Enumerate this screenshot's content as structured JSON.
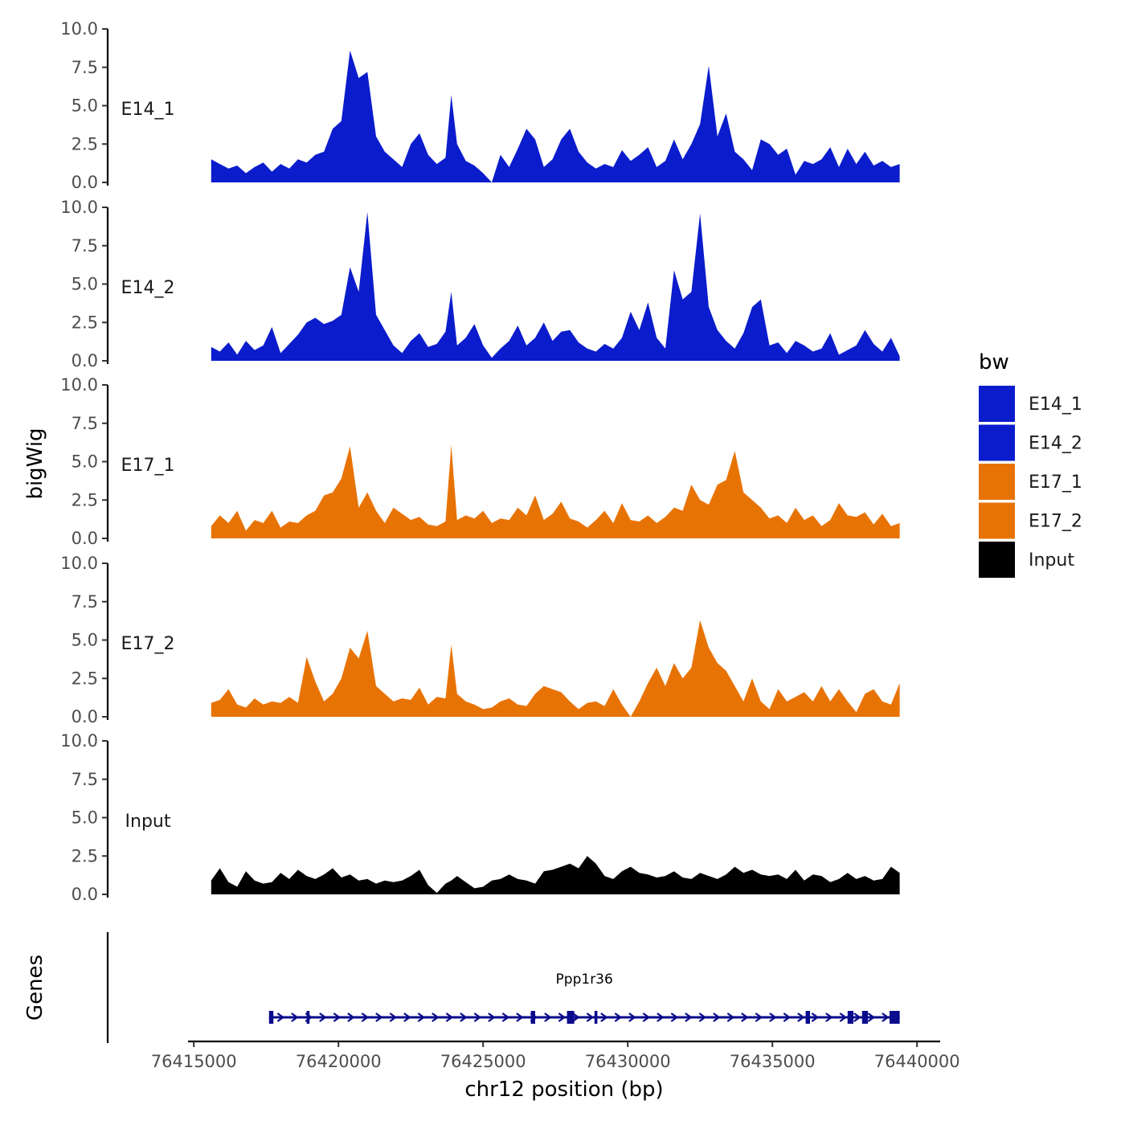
{
  "chart_data": {
    "type": "area",
    "title": "",
    "xlabel": "chr12 position (bp)",
    "ylabel": "bigWig",
    "genes_label": "Genes",
    "xlim": [
      76414800,
      76440800
    ],
    "ylim": [
      0,
      10
    ],
    "x_ticks": [
      76415000,
      76420000,
      76425000,
      76430000,
      76435000,
      76440000
    ],
    "x_tick_labels": [
      "76415000",
      "76420000",
      "76425000",
      "76430000",
      "76435000",
      "76440000"
    ],
    "y_ticks": [
      0,
      2.5,
      5,
      7.5,
      10
    ],
    "y_tick_labels": [
      "0.0",
      "2.5",
      "5.0",
      "7.5",
      "10.0"
    ],
    "legend": {
      "title": "bw",
      "position": "right",
      "entries": [
        {
          "label": "E14_1",
          "color": "#0a1ccc"
        },
        {
          "label": "E14_2",
          "color": "#0a1ccc"
        },
        {
          "label": "E17_1",
          "color": "#e87305"
        },
        {
          "label": "E17_2",
          "color": "#e87305"
        },
        {
          "label": "Input",
          "color": "#000000"
        }
      ]
    },
    "x": [
      76415600,
      76415900,
      76416200,
      76416500,
      76416800,
      76417100,
      76417400,
      76417700,
      76418000,
      76418300,
      76418600,
      76418900,
      76419200,
      76419500,
      76419800,
      76420100,
      76420400,
      76420700,
      76421000,
      76421300,
      76421600,
      76421900,
      76422200,
      76422500,
      76422800,
      76423100,
      76423400,
      76423700,
      76423900,
      76424100,
      76424400,
      76424700,
      76425000,
      76425300,
      76425600,
      76425900,
      76426200,
      76426500,
      76426800,
      76427100,
      76427400,
      76427700,
      76428000,
      76428300,
      76428600,
      76428900,
      76429200,
      76429500,
      76429800,
      76430100,
      76430400,
      76430700,
      76431000,
      76431300,
      76431600,
      76431900,
      76432200,
      76432500,
      76432800,
      76433100,
      76433400,
      76433700,
      76434000,
      76434300,
      76434600,
      76434900,
      76435200,
      76435500,
      76435800,
      76436100,
      76436400,
      76436700,
      76437000,
      76437300,
      76437600,
      76437900,
      76438200,
      76438500,
      76438800,
      76439100,
      76439400
    ],
    "series": [
      {
        "name": "E14_1",
        "color": "#0a1ccc",
        "values": [
          1.5,
          1.2,
          0.9,
          1.1,
          0.6,
          1.0,
          1.3,
          0.7,
          1.2,
          0.9,
          1.5,
          1.3,
          1.8,
          2.0,
          3.5,
          4.0,
          8.6,
          6.8,
          7.2,
          3.0,
          2.0,
          1.5,
          1.0,
          2.5,
          3.2,
          1.8,
          1.2,
          1.6,
          5.7,
          2.5,
          1.4,
          1.1,
          0.6,
          0.0,
          1.8,
          1.0,
          2.2,
          3.5,
          2.8,
          1.0,
          1.5,
          2.8,
          3.5,
          2.0,
          1.3,
          0.9,
          1.2,
          1.0,
          2.1,
          1.4,
          1.8,
          2.3,
          1.0,
          1.4,
          2.8,
          1.5,
          2.5,
          3.8,
          7.6,
          3.0,
          4.5,
          2.0,
          1.5,
          0.8,
          2.8,
          2.5,
          1.8,
          2.2,
          0.5,
          1.4,
          1.2,
          1.5,
          2.3,
          1.0,
          2.2,
          1.2,
          2.0,
          1.1,
          1.4,
          1.0,
          1.2
        ]
      },
      {
        "name": "E14_2",
        "color": "#0a1ccc",
        "values": [
          0.9,
          0.6,
          1.2,
          0.4,
          1.3,
          0.7,
          1.0,
          2.2,
          0.5,
          1.1,
          1.7,
          2.5,
          2.8,
          2.4,
          2.6,
          3.0,
          6.1,
          4.5,
          9.7,
          3.0,
          2.0,
          1.0,
          0.5,
          1.3,
          1.8,
          0.9,
          1.1,
          1.9,
          4.5,
          1.0,
          1.5,
          2.4,
          1.0,
          0.2,
          0.8,
          1.3,
          2.3,
          1.0,
          1.5,
          2.5,
          1.3,
          1.9,
          2.0,
          1.2,
          0.8,
          0.6,
          1.1,
          0.8,
          1.5,
          3.2,
          2.0,
          3.8,
          1.5,
          0.8,
          5.9,
          4.0,
          4.5,
          9.6,
          3.5,
          2.0,
          1.3,
          0.8,
          1.8,
          3.5,
          4.0,
          1.0,
          1.2,
          0.5,
          1.3,
          1.0,
          0.6,
          0.8,
          1.8,
          0.4,
          0.7,
          1.0,
          2.0,
          1.1,
          0.6,
          1.5,
          0.3
        ]
      },
      {
        "name": "E17_1",
        "color": "#e87305",
        "values": [
          0.8,
          1.5,
          1.0,
          1.8,
          0.5,
          1.2,
          1.0,
          1.8,
          0.7,
          1.1,
          1.0,
          1.5,
          1.8,
          2.8,
          3.0,
          3.9,
          6.0,
          2.0,
          3.0,
          1.8,
          1.0,
          2.0,
          1.6,
          1.2,
          1.4,
          0.9,
          0.8,
          1.1,
          6.1,
          1.2,
          1.5,
          1.3,
          1.8,
          1.0,
          1.3,
          1.2,
          2.0,
          1.5,
          2.8,
          1.2,
          1.6,
          2.4,
          1.3,
          1.1,
          0.7,
          1.2,
          1.8,
          1.0,
          2.3,
          1.2,
          1.1,
          1.5,
          1.0,
          1.4,
          2.0,
          1.8,
          3.5,
          2.5,
          2.2,
          3.5,
          3.8,
          5.7,
          3.0,
          2.5,
          2.0,
          1.3,
          1.5,
          1.0,
          2.0,
          1.2,
          1.5,
          0.8,
          1.2,
          2.3,
          1.5,
          1.4,
          1.7,
          0.9,
          1.6,
          0.8,
          1.0
        ]
      },
      {
        "name": "E17_2",
        "color": "#e87305",
        "values": [
          0.9,
          1.1,
          1.8,
          0.8,
          0.6,
          1.2,
          0.8,
          1.0,
          0.9,
          1.3,
          0.9,
          3.9,
          2.3,
          1.0,
          1.5,
          2.5,
          4.5,
          3.8,
          5.6,
          2.0,
          1.5,
          1.0,
          1.2,
          1.1,
          1.9,
          0.8,
          1.3,
          1.2,
          4.7,
          1.5,
          1.0,
          0.8,
          0.5,
          0.6,
          1.0,
          1.2,
          0.8,
          0.7,
          1.5,
          2.0,
          1.8,
          1.6,
          1.0,
          0.5,
          0.9,
          1.0,
          0.7,
          1.8,
          0.8,
          0.0,
          1.0,
          2.2,
          3.2,
          2.0,
          3.5,
          2.5,
          3.2,
          6.3,
          4.5,
          3.5,
          3.0,
          2.0,
          1.0,
          2.5,
          1.0,
          0.5,
          1.8,
          1.0,
          1.3,
          1.6,
          1.0,
          2.0,
          1.0,
          1.8,
          1.0,
          0.3,
          1.5,
          1.8,
          1.0,
          0.8,
          2.2
        ]
      },
      {
        "name": "Input",
        "color": "#000000",
        "values": [
          0.9,
          1.7,
          0.8,
          0.5,
          1.5,
          0.9,
          0.7,
          0.8,
          1.4,
          1.0,
          1.6,
          1.2,
          1.0,
          1.3,
          1.7,
          1.1,
          1.3,
          0.9,
          1.0,
          0.7,
          0.9,
          0.8,
          0.9,
          1.2,
          1.6,
          0.6,
          0.1,
          0.7,
          0.9,
          1.2,
          0.8,
          0.4,
          0.5,
          0.9,
          1.0,
          1.3,
          1.0,
          0.9,
          0.7,
          1.5,
          1.6,
          1.8,
          2.0,
          1.7,
          2.5,
          2.0,
          1.2,
          1.0,
          1.5,
          1.8,
          1.4,
          1.3,
          1.1,
          1.2,
          1.5,
          1.1,
          1.0,
          1.4,
          1.2,
          1.0,
          1.3,
          1.8,
          1.4,
          1.6,
          1.3,
          1.2,
          1.3,
          1.0,
          1.6,
          0.9,
          1.3,
          1.2,
          0.8,
          1.0,
          1.4,
          1.0,
          1.2,
          0.9,
          1.0,
          1.8,
          1.4
        ]
      }
    ],
    "gene": {
      "name": "Ppp1r36",
      "strand": "+",
      "start": 76417600,
      "end": 76439400,
      "exons": [
        [
          76417600,
          76417750
        ],
        [
          76418900,
          76419000
        ],
        [
          76426650,
          76426800
        ],
        [
          76427900,
          76428150
        ],
        [
          76428850,
          76428950
        ],
        [
          76436150,
          76436300
        ],
        [
          76437600,
          76437800
        ],
        [
          76438100,
          76438300
        ],
        [
          76439050,
          76439400
        ]
      ]
    }
  }
}
